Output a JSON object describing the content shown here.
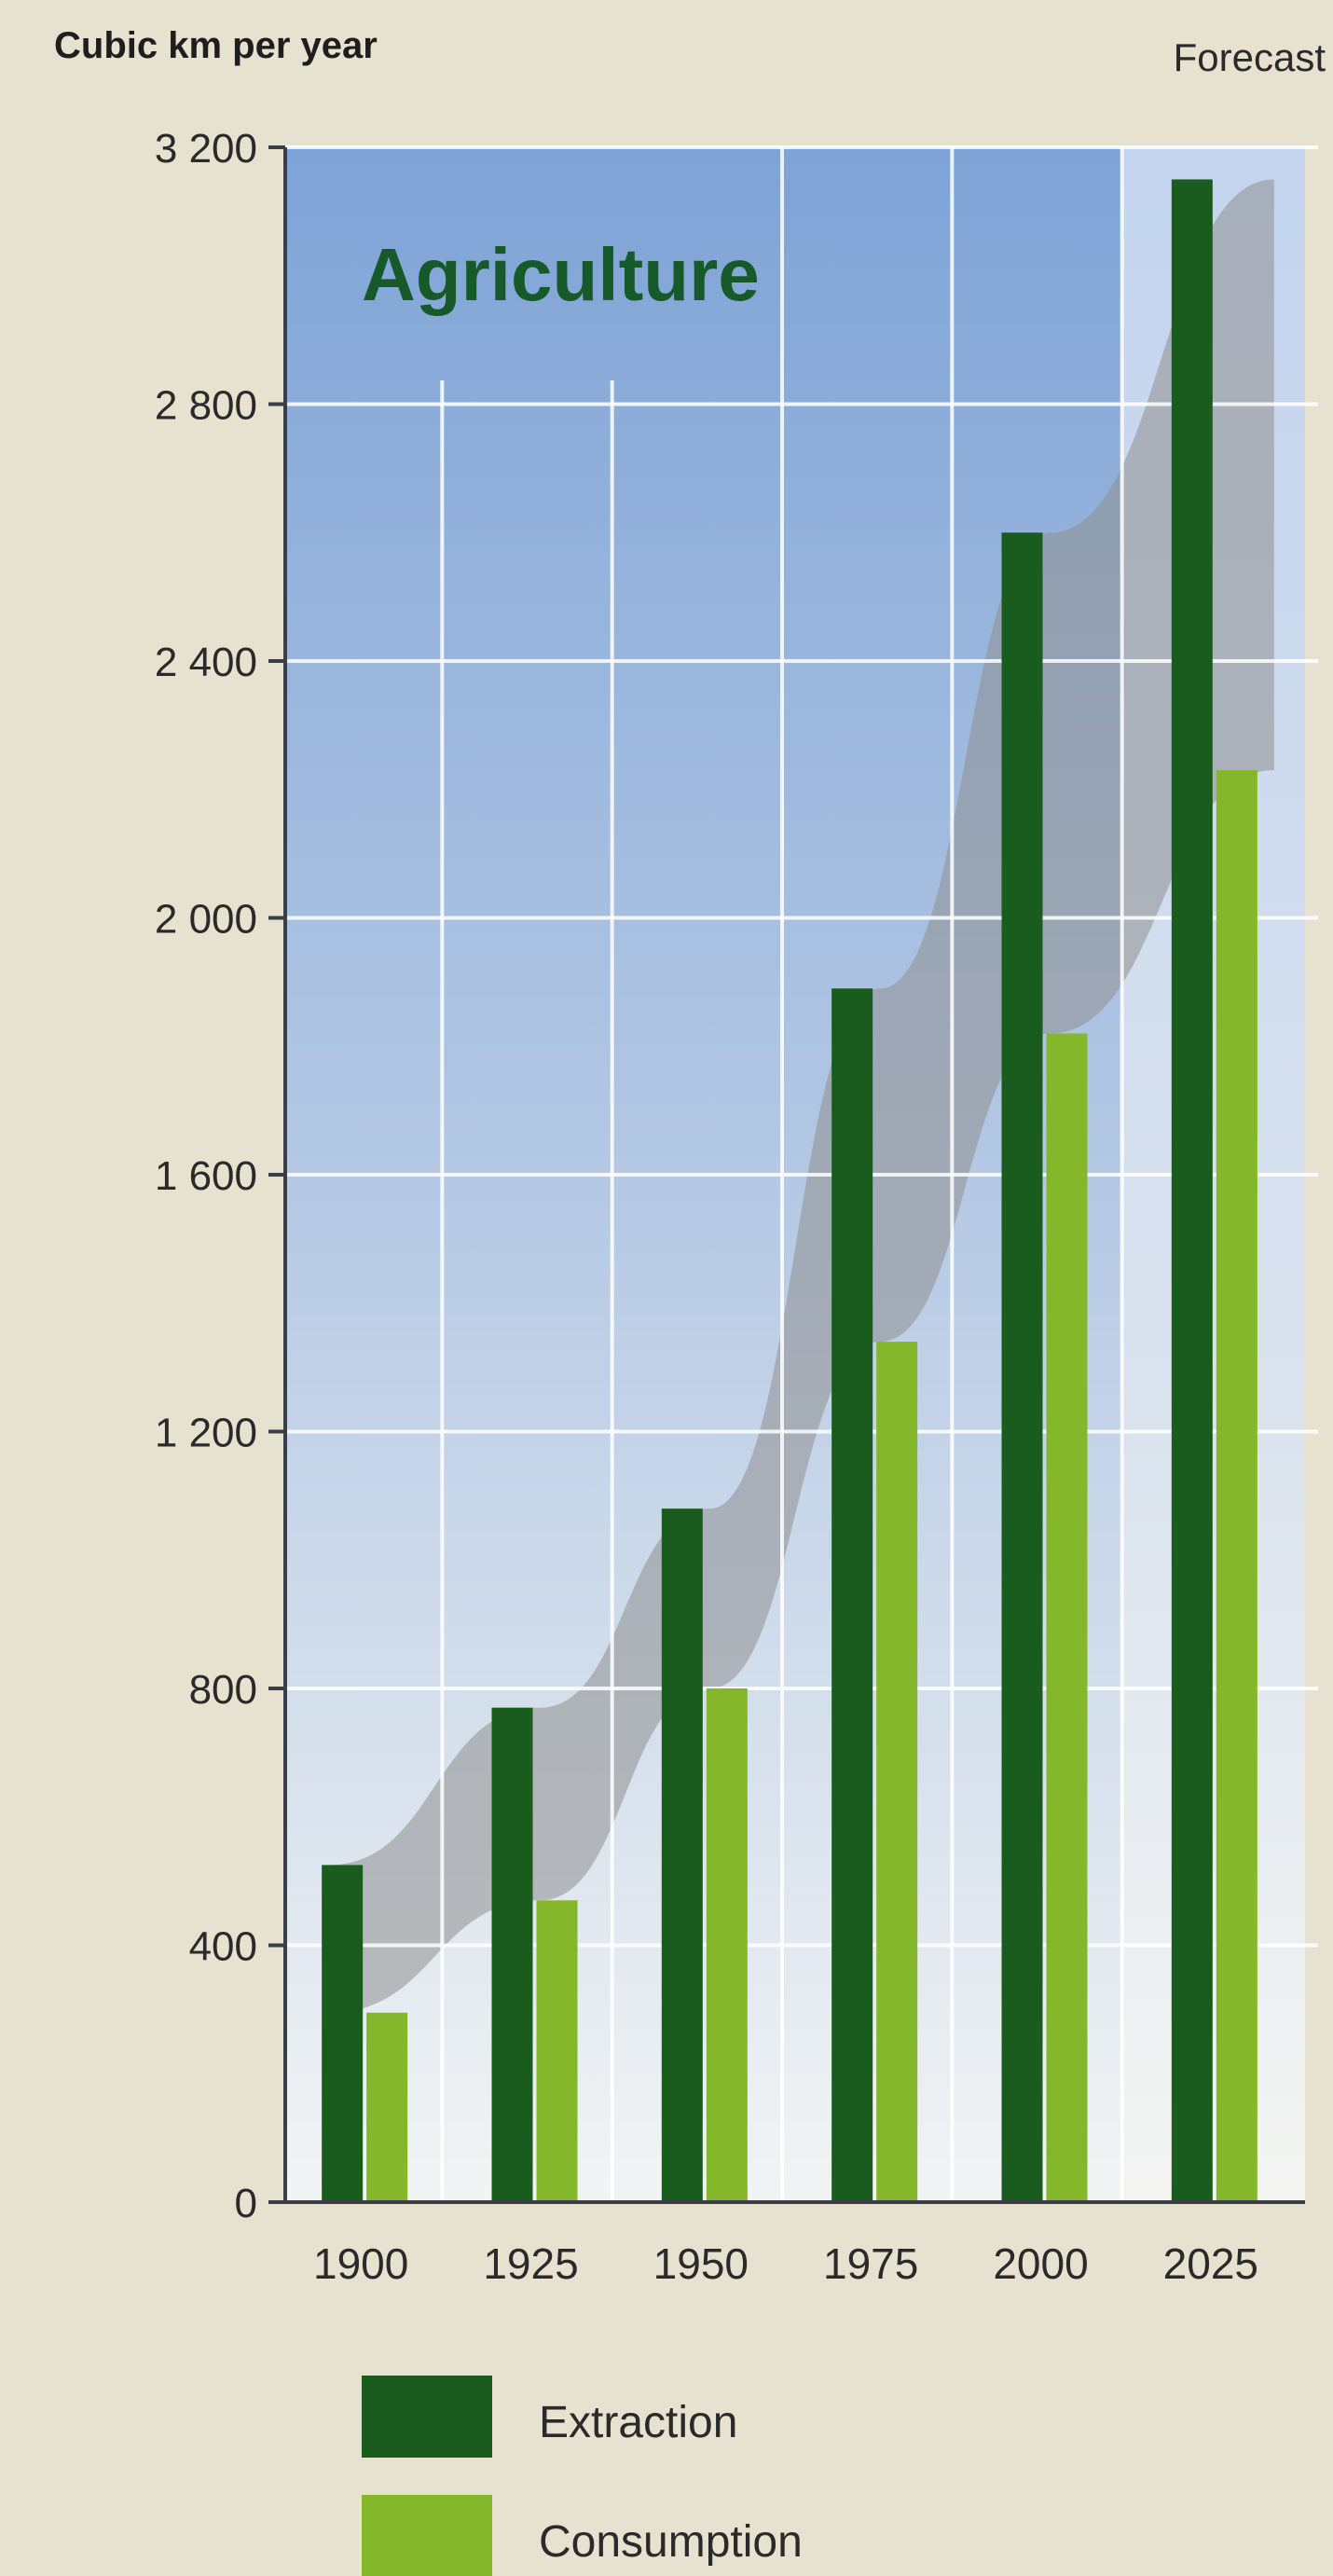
{
  "chart_data": {
    "type": "bar",
    "title": "Agriculture",
    "ylabel": "Cubic km per year",
    "xlabel": "",
    "forecast_label": "Forecast",
    "categories": [
      "1900",
      "1925",
      "1950",
      "1975",
      "2000",
      "2025"
    ],
    "series": [
      {
        "name": "Extraction",
        "values": [
          525,
          770,
          1080,
          1890,
          2600,
          3150
        ],
        "color": "#1a5c1e"
      },
      {
        "name": "Consumption",
        "values": [
          295,
          470,
          800,
          1340,
          1820,
          2230
        ],
        "color": "#84b82a"
      }
    ],
    "ylim": [
      0,
      3200
    ],
    "yticks": [
      0,
      400,
      800,
      1200,
      1600,
      2000,
      2400,
      2800,
      3200
    ],
    "ytick_labels": [
      "0",
      "400",
      "800",
      "1 200",
      "1 600",
      "2 000",
      "2 400",
      "2 800",
      "3 200"
    ],
    "forecast_categories": [
      "2025"
    ],
    "grid": true,
    "legend_position": "bottom-left",
    "colors": {
      "background": "#e6e2cf",
      "plot_top": "#7fa4d8",
      "plot_bottom": "#f1f3f4",
      "forecast_top": "#c6d7ef",
      "band": "#8f8f8f",
      "title": "#175a2a"
    }
  }
}
